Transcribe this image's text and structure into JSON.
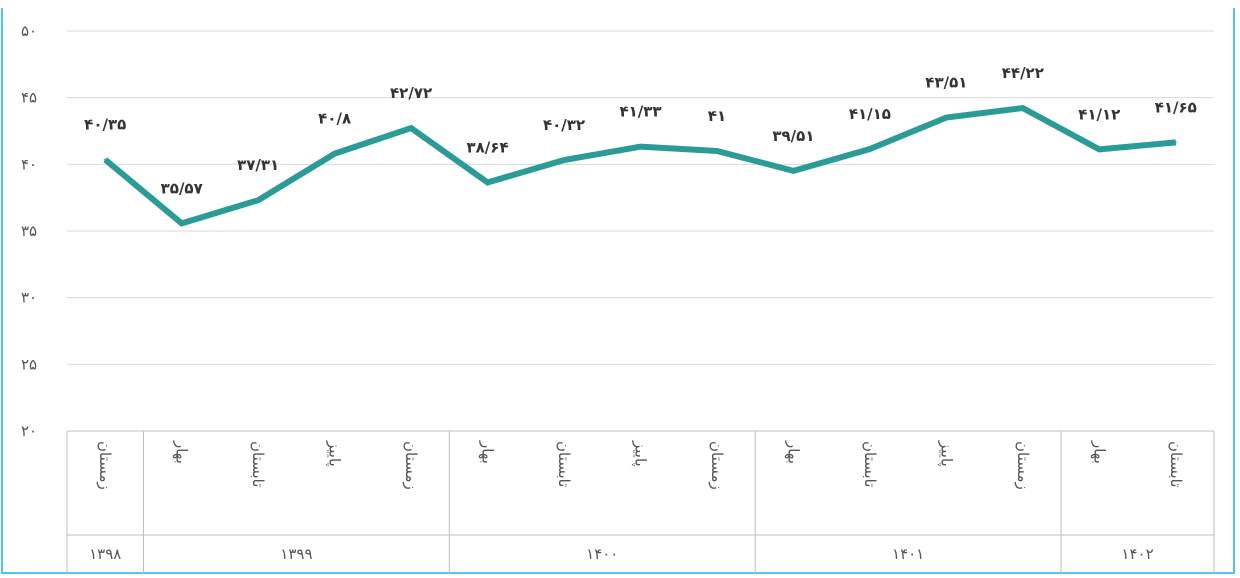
{
  "chart_data": {
    "type": "line",
    "title": "",
    "xlabel": "",
    "ylabel": "",
    "ylim": [
      20,
      50
    ],
    "yticks": [
      20,
      25,
      30,
      35,
      40,
      45,
      50
    ],
    "ytick_labels": [
      "۲۰",
      "۲۵",
      "۳۰",
      "۳۵",
      "۴۰",
      "۴۵",
      "۵۰"
    ],
    "grid": true,
    "line_color": "#2b9b97",
    "frame_color": "#59c2e6",
    "categories": [
      "زمستان",
      "بهار",
      "تابستان",
      "پاییز",
      "زمستان",
      "بهار",
      "تابستان",
      "پاییز",
      "زمستان",
      "بهار",
      "تابستان",
      "پاییز",
      "زمستان",
      "بهار",
      "تابستان"
    ],
    "groups": [
      {
        "label": "۱۳۹۸",
        "count": 1
      },
      {
        "label": "۱۳۹۹",
        "count": 4
      },
      {
        "label": "۱۴۰۰",
        "count": 4
      },
      {
        "label": "۱۴۰۱",
        "count": 4
      },
      {
        "label": "۱۴۰۲",
        "count": 2
      }
    ],
    "series": [
      {
        "values": [
          40.35,
          35.57,
          37.31,
          40.8,
          42.72,
          38.64,
          40.32,
          41.33,
          41,
          39.51,
          41.15,
          43.51,
          44.22,
          41.12,
          41.65
        ],
        "labels": [
          "۴۰/۳۵",
          "۳۵/۵۷",
          "۳۷/۳۱",
          "۴۰/۸",
          "۴۲/۷۲",
          "۳۸/۶۴",
          "۴۰/۳۲",
          "۴۱/۳۳",
          "۴۱",
          "۳۹/۵۱",
          "۴۱/۱۵",
          "۴۳/۵۱",
          "۴۴/۲۲",
          "۴۱/۱۲",
          "۴۱/۶۵"
        ]
      }
    ]
  }
}
